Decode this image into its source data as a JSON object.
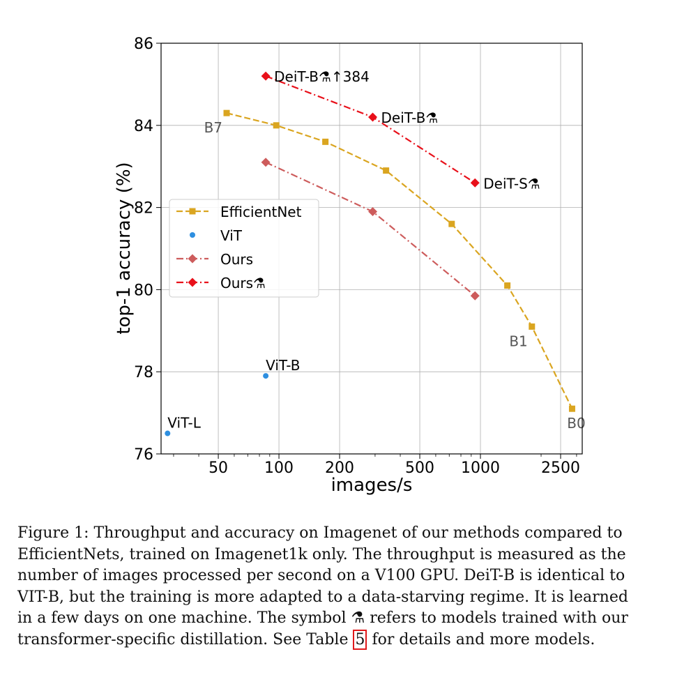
{
  "chart_data": {
    "type": "line",
    "xscale": "log",
    "xlabel": "images/s",
    "ylabel": "top-1 accuracy (%)",
    "xlim": [
      26,
      3200
    ],
    "ylim": [
      76,
      86
    ],
    "xticks": [
      50,
      100,
      200,
      500,
      1000,
      2500
    ],
    "xtick_labels": [
      "50",
      "100",
      "200",
      "500",
      "1000",
      "2500"
    ],
    "yticks": [
      76,
      78,
      80,
      82,
      84,
      86
    ],
    "ytick_labels": [
      "76",
      "78",
      "80",
      "82",
      "84",
      "86"
    ],
    "grid": true,
    "legend_position": "center-left",
    "series": [
      {
        "name": "EfficientNet",
        "color": "#DAA520",
        "marker": "square",
        "linestyle": "dashed",
        "x": [
          55,
          97,
          170,
          340,
          720,
          1360,
          1800,
          2850
        ],
        "y": [
          84.3,
          84.0,
          83.6,
          82.9,
          81.6,
          80.1,
          79.1,
          77.1
        ]
      },
      {
        "name": "ViT",
        "color": "#2E8FE0",
        "marker": "circle",
        "linestyle": "none",
        "x": [
          28,
          86
        ],
        "y": [
          76.5,
          77.9
        ]
      },
      {
        "name": "Ours",
        "color": "#CD5C5C",
        "marker": "diamond",
        "linestyle": "dashdot",
        "x": [
          86,
          292,
          940
        ],
        "y": [
          83.1,
          81.9,
          79.85
        ]
      },
      {
        "name": "Ours⚗",
        "color": "#E8101A",
        "marker": "diamond",
        "linestyle": "dashdot",
        "x": [
          86,
          292,
          940
        ],
        "y": [
          85.2,
          84.2,
          82.6
        ]
      }
    ],
    "annotations": [
      {
        "text": "DeiT-B⚗↑384",
        "x": 86,
        "y": 85.2,
        "color": "#000000",
        "anchor": "right"
      },
      {
        "text": "DeiT-B⚗",
        "x": 292,
        "y": 84.2,
        "color": "#000000",
        "anchor": "right"
      },
      {
        "text": "DeiT-S⚗",
        "x": 940,
        "y": 82.6,
        "color": "#000000",
        "anchor": "right"
      },
      {
        "text": "B7",
        "x": 55,
        "y": 84.3,
        "color": "#555555",
        "anchor": "below-left"
      },
      {
        "text": "B1",
        "x": 1800,
        "y": 79.1,
        "color": "#555555",
        "anchor": "below-left"
      },
      {
        "text": "B0",
        "x": 2850,
        "y": 77.1,
        "color": "#555555",
        "anchor": "below"
      },
      {
        "text": "ViT-B",
        "x": 86,
        "y": 77.9,
        "color": "#000000",
        "anchor": "above-right"
      },
      {
        "text": "ViT-L",
        "x": 28,
        "y": 76.5,
        "color": "#000000",
        "anchor": "above-right"
      }
    ]
  },
  "caption": {
    "lines": [
      "Figure 1: Throughput and accuracy on Imagenet of our methods compared to",
      "EfficientNets, trained on Imagenet1k only. The throughput is measured as the",
      "number of images processed per second on a V100 GPU. DeiT-B is identical to",
      "VIT-B, but the training is more adapted to a data-starving regime. It is learned",
      "in a few days on one machine. The symbol ⚗ refers to models trained with our"
    ],
    "last_line_before": "transformer-specific distillation. See Table ",
    "table_ref": "5",
    "last_line_after": " for details and more models."
  }
}
